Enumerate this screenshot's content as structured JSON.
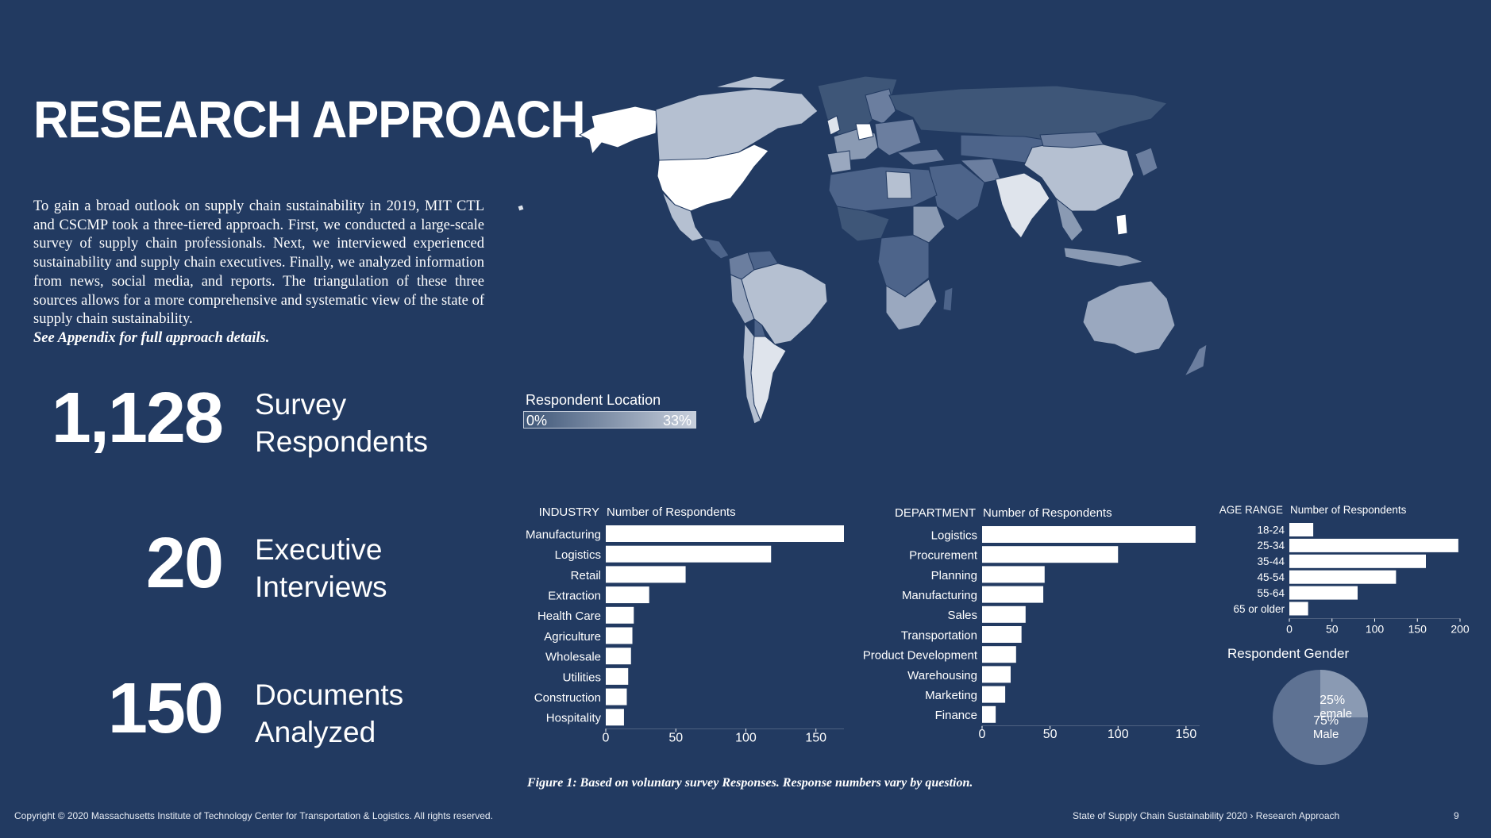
{
  "page": {
    "title": "RESEARCH APPROACH",
    "intro": "To gain a broad outlook on supply chain sustainability in 2019, MIT CTL and CSCMP took a three-tiered approach. First, we conducted a large-scale survey of supply chain professionals. Next, we interviewed experienced sustainability and supply chain executives. Finally, we analyzed information from news, social media, and reports. The triangulation of these three sources allows for a more comprehensive and systematic view of the state of supply chain sustainability.",
    "appendix_note": "See Appendix for full approach details.",
    "stats": [
      {
        "number": "1,128",
        "line1": "Survey",
        "line2": "Respondents"
      },
      {
        "number": "20",
        "line1": "Executive",
        "line2": "Interviews"
      },
      {
        "number": "150",
        "line1": "Documents",
        "line2": "Analyzed"
      }
    ],
    "caption": "Figure 1: Based on voluntary survey Responses. Response numbers vary by question.",
    "footer_left": "Copyright © 2020 Massachusetts Institute of Technology Center for Transportation & Logistics. All rights reserved.",
    "footer_right": "State of Supply Chain Sustainability 2020  › Research Approach",
    "page_number": "9"
  },
  "map_legend": {
    "title": "Respondent Location",
    "min_label": "0%",
    "max_label": "33%",
    "low_color": "#3e5678",
    "high_color": "#ffffff"
  },
  "chart_data": [
    {
      "type": "bar",
      "orientation": "horizontal",
      "category_header": "INDUSTRY",
      "value_header": "Number of Respondents",
      "categories": [
        "Manufacturing",
        "Logistics",
        "Retail",
        "Extraction",
        "Health Care",
        "Agriculture",
        "Wholesale",
        "Utilities",
        "Construction",
        "Hospitality"
      ],
      "values": [
        170,
        118,
        57,
        31,
        20,
        19,
        18,
        16,
        15,
        13
      ],
      "xlim": [
        0,
        170
      ],
      "ticks": [
        0,
        50,
        100,
        150
      ]
    },
    {
      "type": "bar",
      "orientation": "horizontal",
      "category_header": "DEPARTMENT",
      "value_header": "Number of Respondents",
      "categories": [
        "Logistics",
        "Procurement",
        "Planning",
        "Manufacturing",
        "Sales",
        "Transportation",
        "Product Development",
        "Warehousing",
        "Marketing",
        "Finance"
      ],
      "values": [
        157,
        100,
        46,
        45,
        32,
        29,
        25,
        21,
        17,
        10
      ],
      "xlim": [
        0,
        160
      ],
      "ticks": [
        0,
        50,
        100,
        150
      ]
    },
    {
      "type": "bar",
      "orientation": "horizontal",
      "category_header": "AGE RANGE",
      "value_header": "Number of Respondents",
      "categories": [
        "18-24",
        "25-34",
        "35-44",
        "45-54",
        "55-64",
        "65 or older"
      ],
      "values": [
        28,
        198,
        160,
        125,
        80,
        22
      ],
      "xlim": [
        0,
        200
      ],
      "ticks": [
        0,
        50,
        100,
        150,
        200
      ]
    },
    {
      "type": "pie",
      "title": "Respondent Gender",
      "slices": [
        {
          "label": "Female",
          "value": 25,
          "value_label": "25%",
          "color": "#8a9ab3"
        },
        {
          "label": "Male",
          "value": 75,
          "value_label": "75%",
          "color": "#5e7293"
        }
      ]
    }
  ]
}
